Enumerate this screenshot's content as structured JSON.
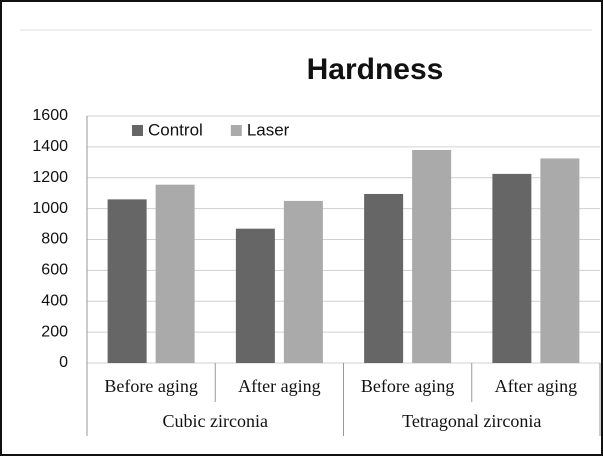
{
  "chart_data": {
    "type": "bar",
    "title": "Hardness",
    "groups": [
      {
        "name": "Cubic zirconia",
        "categories": [
          "Before aging",
          "After aging"
        ]
      },
      {
        "name": "Tetragonal zirconia",
        "categories": [
          "Before aging",
          "After aging"
        ]
      }
    ],
    "series": [
      {
        "name": "Control",
        "color": "#666666",
        "values": [
          1060,
          870,
          1095,
          1225
        ]
      },
      {
        "name": "Laser",
        "color": "#aaaaaa",
        "values": [
          1155,
          1050,
          1380,
          1325
        ]
      }
    ],
    "ylim": [
      0,
      1600
    ],
    "yticks": [
      0,
      200,
      400,
      600,
      800,
      1000,
      1200,
      1400,
      1600
    ],
    "grid": true,
    "legend": "top-left"
  }
}
